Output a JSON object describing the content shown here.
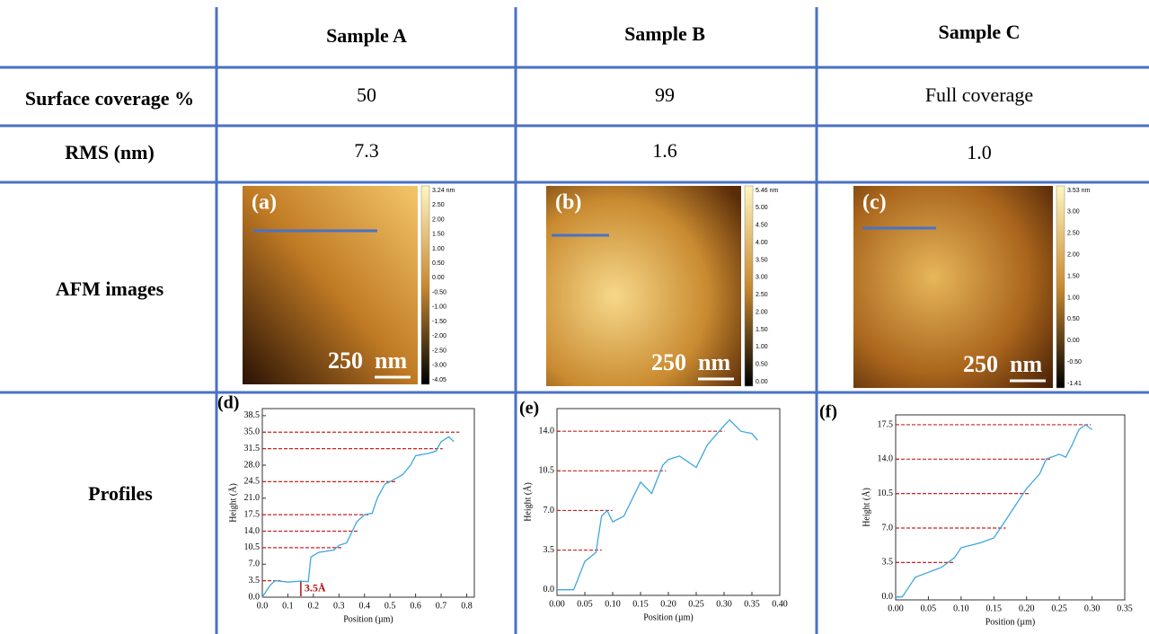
{
  "header": {
    "columns": [
      "Sample A",
      "Sample B",
      "Sample C"
    ]
  },
  "rows": [
    {
      "label": "Surface coverage %",
      "cells": [
        "50",
        "99",
        "Full coverage"
      ]
    },
    {
      "label": "RMS (nm)",
      "cells": [
        "7.3",
        "1.6",
        "1.0"
      ]
    },
    {
      "label": "AFM images"
    },
    {
      "label": "Profiles"
    }
  ],
  "images": [
    {
      "label": "(a)",
      "scale": "250",
      "unit": "nm",
      "colorbar": [
        "3.24 nm",
        "2.50",
        "2.00",
        "1.50",
        "1.00",
        "0.50",
        "0.00",
        "-0.50",
        "-1.00",
        "-1.50",
        "-2.00",
        "-2.50",
        "-3.00",
        "-4.05"
      ]
    },
    {
      "label": "(b)",
      "scale": "250",
      "unit": "nm",
      "colorbar": [
        "5.46 nm",
        "5.00",
        "4.50",
        "4.00",
        "3.50",
        "3.00",
        "2.50",
        "2.00",
        "1.50",
        "1.00",
        "0.50",
        "0.00"
      ]
    },
    {
      "label": "(c)",
      "scale": "250",
      "unit": "nm",
      "colorbar": [
        "3.53 nm",
        "3.00",
        "2.50",
        "2.00",
        "1.50",
        "1.00",
        "0.50",
        "0.00",
        "-0.50",
        "-1.41"
      ]
    }
  ],
  "charts": [
    {
      "type": "line",
      "label": "(d)",
      "xlabel": "Position (µm)",
      "ylabel": "Height (Å)",
      "color": "#3ea6e0",
      "annotation": "3.5Å",
      "xlim": [
        0,
        0.83
      ],
      "ylim": [
        0,
        40
      ],
      "xticks": [
        {
          "value": 0,
          "label": "0.0"
        },
        0.1,
        0.2,
        0.3,
        0.4,
        0.5,
        0.6,
        0.7,
        0.8
      ],
      "yticks": [
        {
          "value": 0,
          "label": "0.0"
        },
        3.5,
        {
          "value": 7,
          "label": "7.0"
        },
        10.5,
        {
          "value": 14,
          "label": "14.0"
        },
        17.5,
        {
          "value": 21,
          "label": "21.0"
        },
        24.5,
        {
          "value": 28,
          "label": "28.0"
        },
        31.5,
        {
          "value": 35,
          "label": "35.0"
        },
        38.5
      ],
      "reference_levels": [
        3.5,
        10.5,
        14,
        17.5,
        24.5,
        31.5,
        35
      ],
      "x": [
        0,
        0.03,
        0.05,
        0.1,
        0.15,
        0.18,
        0.19,
        0.22,
        0.28,
        0.3,
        0.33,
        0.37,
        0.4,
        0.43,
        0.45,
        0.48,
        0.5,
        0.55,
        0.58,
        0.6,
        0.65,
        0.68,
        0.7,
        0.73,
        0.75
      ],
      "values": [
        0,
        2.5,
        3.5,
        3.2,
        3.4,
        3.3,
        8.5,
        9.5,
        10,
        11,
        11.5,
        16,
        17.5,
        17.8,
        21,
        24,
        24.5,
        26,
        28,
        30,
        30.5,
        31,
        33,
        34,
        33
      ]
    },
    {
      "type": "line",
      "label": "(e)",
      "xlabel": "Position (µm)",
      "ylabel": "Height (Å)",
      "color": "#3ea6e0",
      "xlim": [
        0,
        0.4
      ],
      "ylim": [
        -0.5,
        16
      ],
      "xticks": [
        {
          "value": 0,
          "label": "0.00"
        },
        0.05,
        {
          "value": 0.1,
          "label": "0.10"
        },
        0.15,
        {
          "value": 0.2,
          "label": "0.20"
        },
        0.25,
        {
          "value": 0.3,
          "label": "0.30"
        },
        0.35,
        {
          "value": 0.4,
          "label": "0.40"
        }
      ],
      "yticks": [
        {
          "value": 0,
          "label": "0.0"
        },
        3.5,
        {
          "value": 7,
          "label": "7.0"
        },
        10.5,
        {
          "value": 14,
          "label": "14.0"
        }
      ],
      "reference_levels": [
        3.5,
        7,
        10.5,
        14
      ],
      "x": [
        0,
        0.02,
        0.03,
        0.05,
        0.07,
        0.08,
        0.09,
        0.1,
        0.12,
        0.15,
        0.17,
        0.19,
        0.2,
        0.22,
        0.25,
        0.27,
        0.3,
        0.31,
        0.33,
        0.35,
        0.36
      ],
      "values": [
        0,
        0,
        0,
        2.5,
        3.3,
        6.5,
        7,
        6,
        6.5,
        9.5,
        8.5,
        11,
        11.5,
        11.8,
        10.8,
        12.8,
        14.5,
        15,
        14,
        13.8,
        13.2
      ]
    },
    {
      "type": "line",
      "label": "(f)",
      "xlabel": "Position (µm)",
      "ylabel": "Height (Å)",
      "color": "#3ea6e0",
      "xlim": [
        0,
        0.35
      ],
      "ylim": [
        -0.3,
        18.5
      ],
      "xticks": [
        {
          "value": 0,
          "label": "0.00"
        },
        0.05,
        {
          "value": 0.1,
          "label": "0.10"
        },
        0.15,
        {
          "value": 0.2,
          "label": "0.20"
        },
        0.25,
        {
          "value": 0.3,
          "label": "0.30"
        },
        0.35
      ],
      "yticks": [
        {
          "value": 0,
          "label": "0.0"
        },
        3.5,
        {
          "value": 7,
          "label": "7.0"
        },
        10.5,
        {
          "value": 14,
          "label": "14.0"
        },
        17.5
      ],
      "reference_levels": [
        3.5,
        7,
        10.5,
        14,
        17.5
      ],
      "x": [
        0,
        0.01,
        0.02,
        0.03,
        0.05,
        0.07,
        0.09,
        0.1,
        0.13,
        0.15,
        0.17,
        0.18,
        0.2,
        0.22,
        0.23,
        0.25,
        0.26,
        0.27,
        0.28,
        0.29,
        0.3
      ],
      "values": [
        0,
        0,
        1,
        2,
        2.5,
        3,
        4,
        5,
        5.5,
        6,
        8,
        9,
        11,
        12.5,
        14,
        14.5,
        14.2,
        15.5,
        17,
        17.5,
        17
      ]
    }
  ]
}
